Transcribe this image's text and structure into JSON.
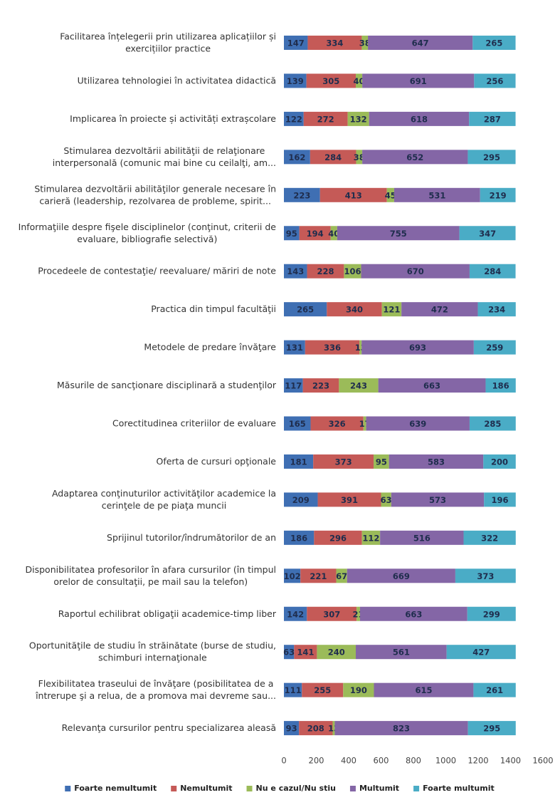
{
  "chart_data": {
    "type": "stacked_barh",
    "categories": [
      "Facilitarea înțelegerii prin utilizarea aplicațiilor și exercițiilor practice",
      "Utilizarea tehnologiei în activitatea didactică",
      "Implicarea în proiecte și activități extrașcolare",
      "Stimularea dezvoltării abilităţii de relaţionare interpersonală (comunic mai bine cu ceilalţi, am...",
      "Stimularea dezvoltării abilităţilor generale necesare în carieră (leadership, rezolvarea de probleme, spirit...",
      "Informaţiile despre fişele disciplinelor (conţinut, criterii de evaluare, bibliografie selectivă)",
      "Procedeele de contestaţie/ reevaluare/ măriri de note",
      "Practica din timpul facultăţii",
      "Metodele de predare învăţare",
      "Măsurile de sancţionare disciplinară a studenţilor",
      "Corectitudinea criteriilor de evaluare",
      "Oferta de cursuri opţionale",
      "Adaptarea conţinuturilor activităţilor academice la cerinţele de pe piaţa muncii",
      "Sprijinul tutorilor/îndrumătorilor de an",
      "Disponibilitatea profesorilor în afara cursurilor (în timpul orelor de consultaţii, pe mail sau la telefon)",
      "Raportul echilibrat obligaţii academice-timp liber",
      "Oportunităţile de studiu în străinătate (burse de studiu, schimburi internaţionale",
      "Flexibilitatea traseului de învăţare (posibilitatea de a întrerupe şi a relua, de a promova mai devreme sau...",
      "Relevanţa cursurilor pentru specializarea aleasă"
    ],
    "series": [
      {
        "name": "Foarte nemultumit",
        "color": "#3f6fb3",
        "values": [
          147,
          139,
          122,
          162,
          223,
          95,
          143,
          265,
          131,
          117,
          165,
          181,
          209,
          186,
          102,
          142,
          63,
          111,
          93
        ]
      },
      {
        "name": "Nemultumit",
        "color": "#c55a57",
        "values": [
          334,
          305,
          272,
          284,
          413,
          194,
          228,
          340,
          336,
          223,
          326,
          373,
          391,
          296,
          221,
          307,
          141,
          255,
          208
        ]
      },
      {
        "name": "Nu e cazul/Nu stiu",
        "color": "#9bbb59",
        "values": [
          38,
          40,
          132,
          38,
          45,
          40,
          106,
          121,
          13,
          243,
          17,
          95,
          63,
          112,
          67,
          21,
          240,
          190,
          13
        ]
      },
      {
        "name": "Multumit",
        "color": "#8466a6",
        "values": [
          647,
          691,
          618,
          652,
          531,
          755,
          670,
          472,
          693,
          663,
          639,
          583,
          573,
          516,
          669,
          663,
          561,
          615,
          823
        ]
      },
      {
        "name": "Foarte multumit",
        "color": "#4aacc6",
        "values": [
          265,
          256,
          287,
          295,
          219,
          347,
          284,
          234,
          259,
          186,
          285,
          200,
          196,
          322,
          373,
          299,
          427,
          261,
          295
        ]
      }
    ],
    "xlim": [
      0,
      1600
    ],
    "xticks": [
      0,
      200,
      400,
      600,
      800,
      1000,
      1200,
      1400,
      1600
    ],
    "legend": "bottom"
  }
}
